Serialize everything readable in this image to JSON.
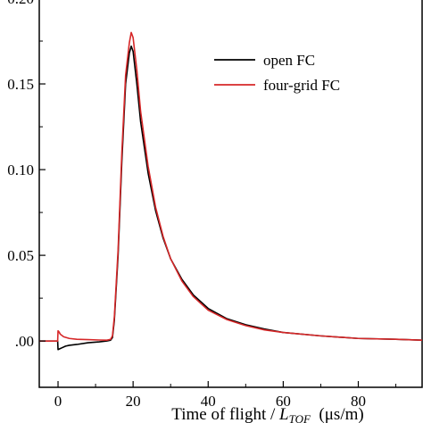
{
  "chart_data": {
    "type": "line",
    "title": "",
    "xlabel": {
      "prefix": "Time of flight / ",
      "symbol": "L",
      "subscript": "TOF",
      "unit": "  (μs/m)"
    },
    "ylabel": "",
    "xlim": [
      -5,
      97
    ],
    "ylim": [
      -0.027,
      0.2
    ],
    "x_ticks": [
      0,
      20,
      40,
      60,
      80
    ],
    "x_tick_labels": [
      "0",
      "20",
      "40",
      "60",
      "80"
    ],
    "y_ticks": [
      0.0,
      0.05,
      0.1,
      0.15,
      0.2
    ],
    "y_tick_labels": [
      ".00",
      "0.05",
      "0.10",
      "0.15",
      "0.20"
    ],
    "legend_position": "top-right",
    "series": [
      {
        "name": "open FC",
        "color": "#000000",
        "x": [
          -5,
          -0.1,
          0,
          0.5,
          1,
          2,
          3,
          5,
          8,
          11,
          13,
          14,
          14.5,
          15,
          16,
          17,
          18,
          19,
          19.5,
          20,
          21,
          22,
          24,
          26,
          28,
          30,
          33,
          36,
          40,
          45,
          50,
          55,
          60,
          70,
          80,
          90,
          97
        ],
        "y": [
          0.0,
          0.0,
          -0.005,
          -0.0045,
          -0.004,
          -0.003,
          -0.0025,
          -0.002,
          -0.001,
          -0.0005,
          0.0,
          0.0005,
          0.002,
          0.012,
          0.05,
          0.105,
          0.15,
          0.168,
          0.172,
          0.169,
          0.15,
          0.128,
          0.098,
          0.076,
          0.06,
          0.048,
          0.036,
          0.027,
          0.019,
          0.013,
          0.0095,
          0.007,
          0.005,
          0.003,
          0.0015,
          0.001,
          0.0005
        ]
      },
      {
        "name": "four-grid FC",
        "color": "#d62728",
        "x": [
          -5,
          -0.1,
          0,
          0.2,
          0.6,
          1.5,
          3,
          5,
          8,
          11,
          13,
          14,
          14.5,
          15,
          16,
          17,
          18,
          19,
          19.5,
          20,
          21,
          22,
          24,
          26,
          28,
          30,
          33,
          36,
          40,
          45,
          50,
          55,
          60,
          70,
          80,
          90,
          97
        ],
        "y": [
          0.0,
          0.0,
          0.006,
          0.0055,
          0.004,
          0.0025,
          0.0015,
          0.001,
          0.0008,
          0.0006,
          0.0005,
          0.001,
          0.003,
          0.014,
          0.053,
          0.11,
          0.155,
          0.174,
          0.18,
          0.177,
          0.158,
          0.134,
          0.102,
          0.078,
          0.061,
          0.048,
          0.035,
          0.026,
          0.018,
          0.0125,
          0.009,
          0.0065,
          0.005,
          0.003,
          0.0015,
          0.001,
          0.0005
        ]
      }
    ]
  }
}
